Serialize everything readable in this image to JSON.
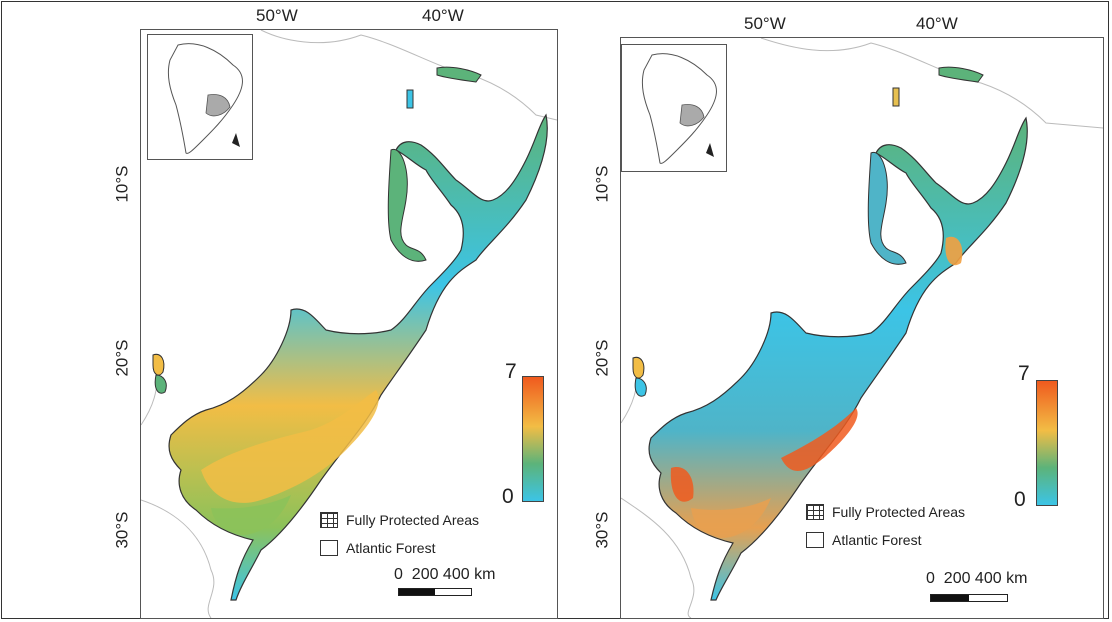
{
  "panels": [
    {
      "lon_labels": [
        "50°W",
        "40°W"
      ],
      "lat_labels": [
        "10°S",
        "20°S",
        "30°S"
      ],
      "colorbar": {
        "max": "7",
        "min": "0"
      },
      "legend": {
        "protected": "Fully Protected Areas",
        "forest": "Atlantic Forest"
      },
      "scale": {
        "text": "0  200 400 km"
      }
    },
    {
      "lon_labels": [
        "50°W",
        "40°W"
      ],
      "lat_labels": [
        "10°S",
        "20°S",
        "30°S"
      ],
      "colorbar": {
        "max": "7",
        "min": "0"
      },
      "legend": {
        "protected": "Fully Protected Areas",
        "forest": "Atlantic Forest"
      },
      "scale": {
        "text": "0  200 400 km"
      }
    }
  ],
  "colors": {
    "low": "#3cc4e6",
    "mid": "#5cb37a",
    "high_yellow": "#f2bd45",
    "high_orange": "#f05a1e",
    "border": "#333333"
  }
}
